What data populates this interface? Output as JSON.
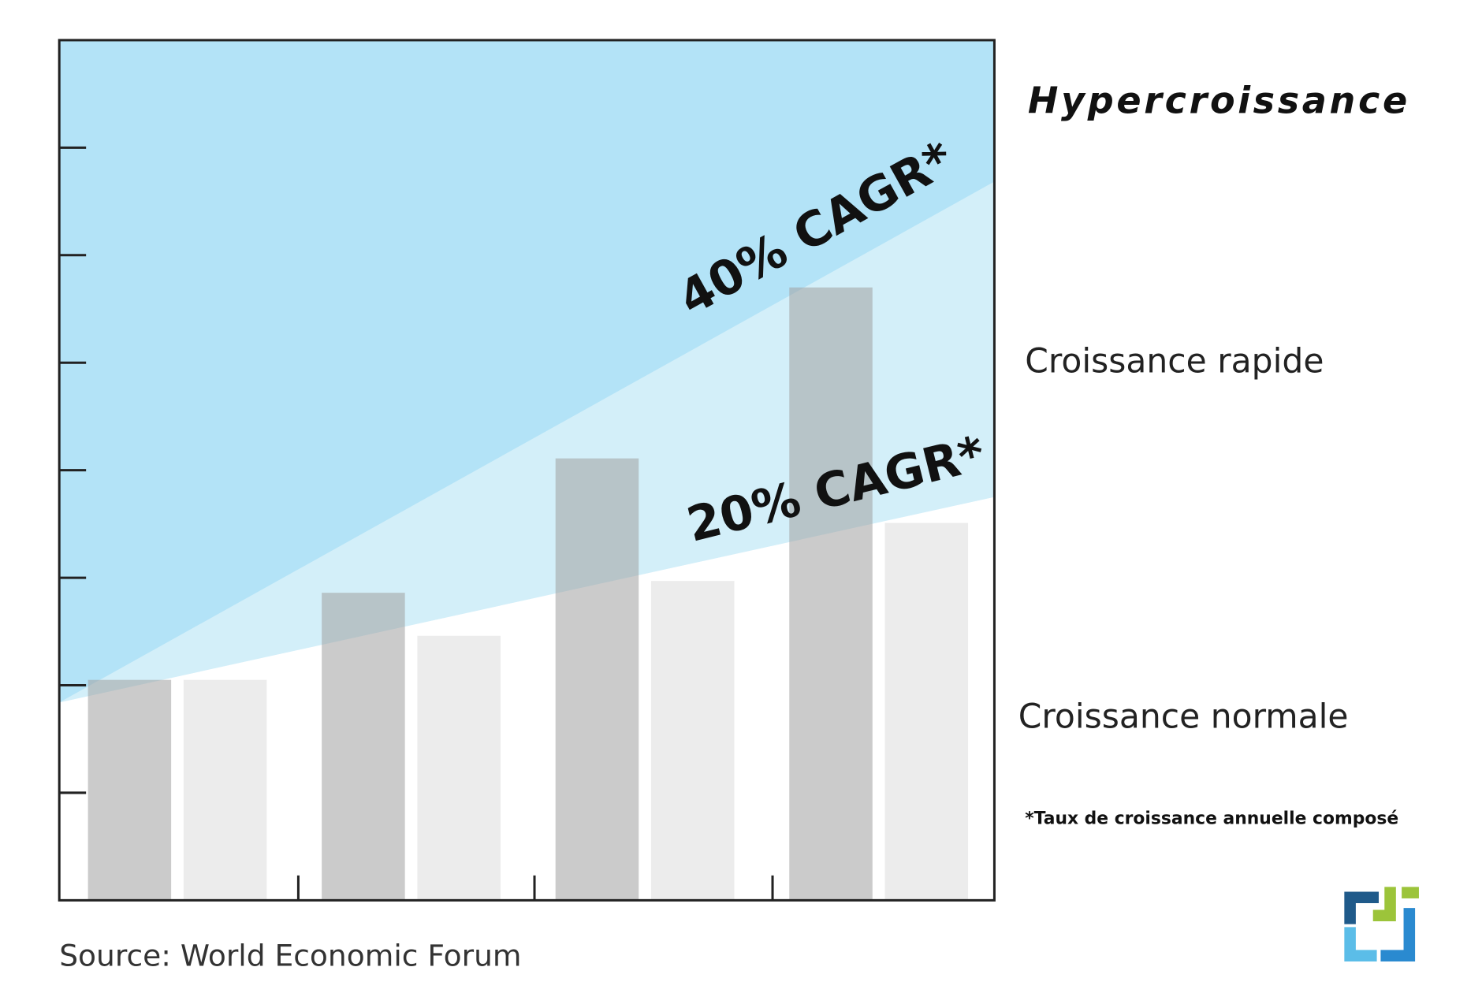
{
  "chart_data": {
    "type": "bar",
    "categories": [
      null,
      null,
      null,
      null
    ],
    "series": [
      {
        "color": "#a0a0a0",
        "values": [
          2.05,
          2.86,
          4.11,
          5.7
        ]
      },
      {
        "color": "#dcdcdc",
        "values": [
          2.05,
          2.46,
          2.97,
          3.51
        ]
      }
    ],
    "ylim": [
      0,
      8
    ],
    "yticks": [
      1,
      2,
      3,
      4,
      5,
      6,
      7
    ],
    "annotations": [
      "40% CAGR*",
      "20% CAGR*"
    ],
    "zone_labels": [
      "Hypercroissance",
      "Croissance rapide",
      "Croissance normale"
    ],
    "footnote": "*Taux de croissance annuelle composé",
    "source": "Source: World Economic Forum"
  }
}
